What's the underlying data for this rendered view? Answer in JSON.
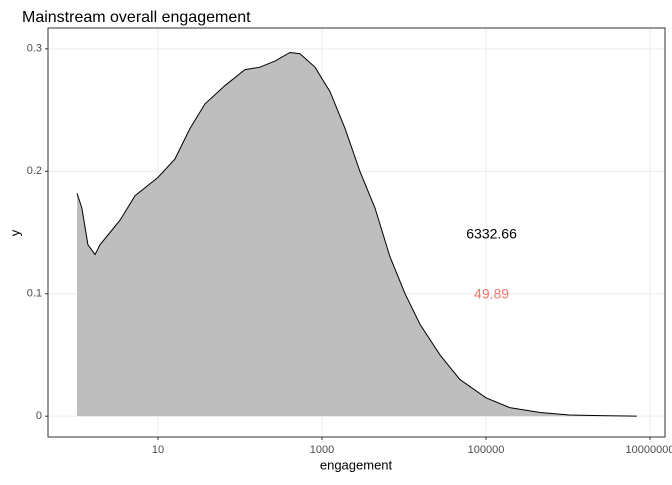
{
  "chart_data": {
    "type": "area",
    "title": "Mainstream overall engagement",
    "xlabel": "engagement",
    "ylabel": "y",
    "x": [
      1.03,
      1.18,
      1.4,
      1.71,
      1.96,
      2.6,
      3.44,
      5.25,
      10,
      16.1,
      24.6,
      37.4,
      65.6,
      115,
      175,
      267,
      407,
      540,
      822,
      1254,
      1910,
      2900,
      4430,
      6760,
      10300,
      15700,
      27500,
      48000,
      100000,
      195000,
      458000,
      1050000,
      2460000,
      6900000
    ],
    "series": [
      {
        "color": "#bebebe",
        "values": [
          0.182,
          0.17,
          0.14,
          0.132,
          0.14,
          0.15,
          0.16,
          0.18,
          0.195,
          0.21,
          0.235,
          0.255,
          0.27,
          0.283,
          0.285,
          0.29,
          0.297,
          0.296,
          0.285,
          0.265,
          0.235,
          0.2,
          0.17,
          0.13,
          0.1,
          0.075,
          0.05,
          0.03,
          0.015,
          0.007,
          0.003,
          0.001,
          0.0005,
          0
        ]
      }
    ],
    "annotations": [
      {
        "text": "6332.66",
        "x": 117000,
        "y": 0.148,
        "color": "#000000"
      },
      {
        "text": "49.89",
        "x": 117000,
        "y": 0.099,
        "color": "#F8766D"
      }
    ],
    "xscale": "log",
    "xlim": [
      0.456,
      15240000
    ],
    "xticks": [
      10,
      1000,
      100000,
      10000000
    ],
    "ylim": [
      -0.017,
      0.317
    ],
    "yticks": [
      0.0,
      0.1,
      0.2,
      0.3
    ],
    "grid": true
  }
}
